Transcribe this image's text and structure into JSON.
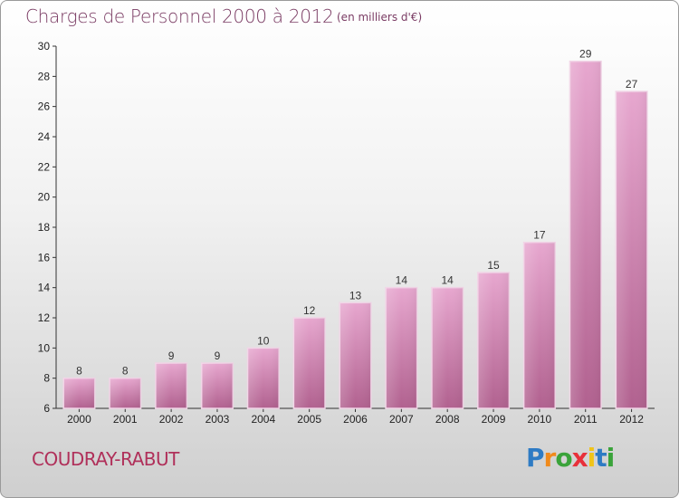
{
  "title": "Charges de Personnel 2000 à 2012",
  "subtitle": "(en milliers d'€)",
  "commune": "COUDRAY-RABUT",
  "logo": {
    "text": "Proxiti",
    "letters": [
      "P",
      "r",
      "o",
      "x",
      "i",
      "t",
      "i"
    ],
    "colors": [
      "#2e7bc4",
      "#f08a1c",
      "#3aa33a",
      "#e8303a",
      "#f0c419",
      "#2e7bc4",
      "#3aa33a"
    ]
  },
  "colors": {
    "bar": "#d98cbb",
    "bar_dark": "#b1618f",
    "title": "#7a3b63",
    "commune": "#b0305a"
  },
  "chart_data": {
    "type": "bar",
    "categories": [
      "2000",
      "2001",
      "2002",
      "2003",
      "2004",
      "2005",
      "2006",
      "2007",
      "2008",
      "2009",
      "2010",
      "2011",
      "2012"
    ],
    "values": [
      8,
      8,
      9,
      9,
      10,
      12,
      13,
      14,
      14,
      15,
      17,
      29,
      27
    ],
    "ylim": [
      6,
      30
    ],
    "yticks": [
      6,
      8,
      10,
      12,
      14,
      16,
      18,
      20,
      22,
      24,
      26,
      28,
      30
    ],
    "grid": false,
    "xlabel": "",
    "ylabel": ""
  }
}
